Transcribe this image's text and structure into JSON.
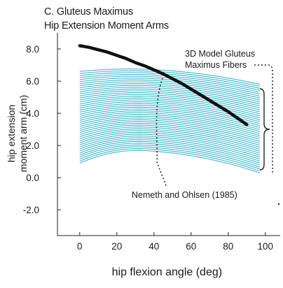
{
  "chart_data": {
    "type": "line",
    "title": "C. Gluteus Maximus",
    "subtitle": "Hip Extension Moment Arms",
    "xlabel": "hip flexion angle (deg)",
    "ylabel_lines": [
      "hip extension",
      "moment arm (cm)"
    ],
    "xlim": [
      -12,
      108
    ],
    "ylim": [
      -3.6,
      9.0
    ],
    "xticks": [
      0,
      20,
      40,
      60,
      80,
      100
    ],
    "xtick_labels": [
      "0",
      "20",
      "40",
      "60",
      "80",
      "100"
    ],
    "yticks": [
      8.0,
      6.0,
      4.0,
      2.0,
      0.0,
      -2.0
    ],
    "ytick_labels": [
      "8.0",
      "6.0",
      "4.0",
      "2.0",
      "0.0",
      "-2.0"
    ],
    "grid": false,
    "annotations": [
      {
        "name": "model",
        "lines": [
          "3D Model Gluteus",
          "Maximus Fibers"
        ]
      },
      {
        "name": "reference",
        "lines": [
          "Nemeth and Ohlsen (1985)"
        ]
      }
    ],
    "series": [
      {
        "name": "Nemeth and Ohlsen (1985)",
        "color": "#111111",
        "x": [
          0,
          5,
          10,
          15,
          20,
          25,
          30,
          35,
          40,
          45,
          50,
          55,
          60,
          65,
          70,
          75,
          80,
          85,
          90
        ],
        "y": [
          8.2,
          8.1,
          7.95,
          7.8,
          7.6,
          7.4,
          7.15,
          6.95,
          6.7,
          6.45,
          6.15,
          5.85,
          5.5,
          5.15,
          4.8,
          4.45,
          4.1,
          3.7,
          3.3
        ]
      },
      {
        "name": "3D Model Gluteus Maximus Fibers",
        "color": "#3ab5c9",
        "type": "fiber-family",
        "x_range": [
          0,
          97
        ],
        "start_y": [
          0.9,
          6.6
        ],
        "peak_x": [
          35,
          45
        ],
        "end_y": [
          0.3,
          5.8
        ],
        "count": 46
      }
    ]
  }
}
